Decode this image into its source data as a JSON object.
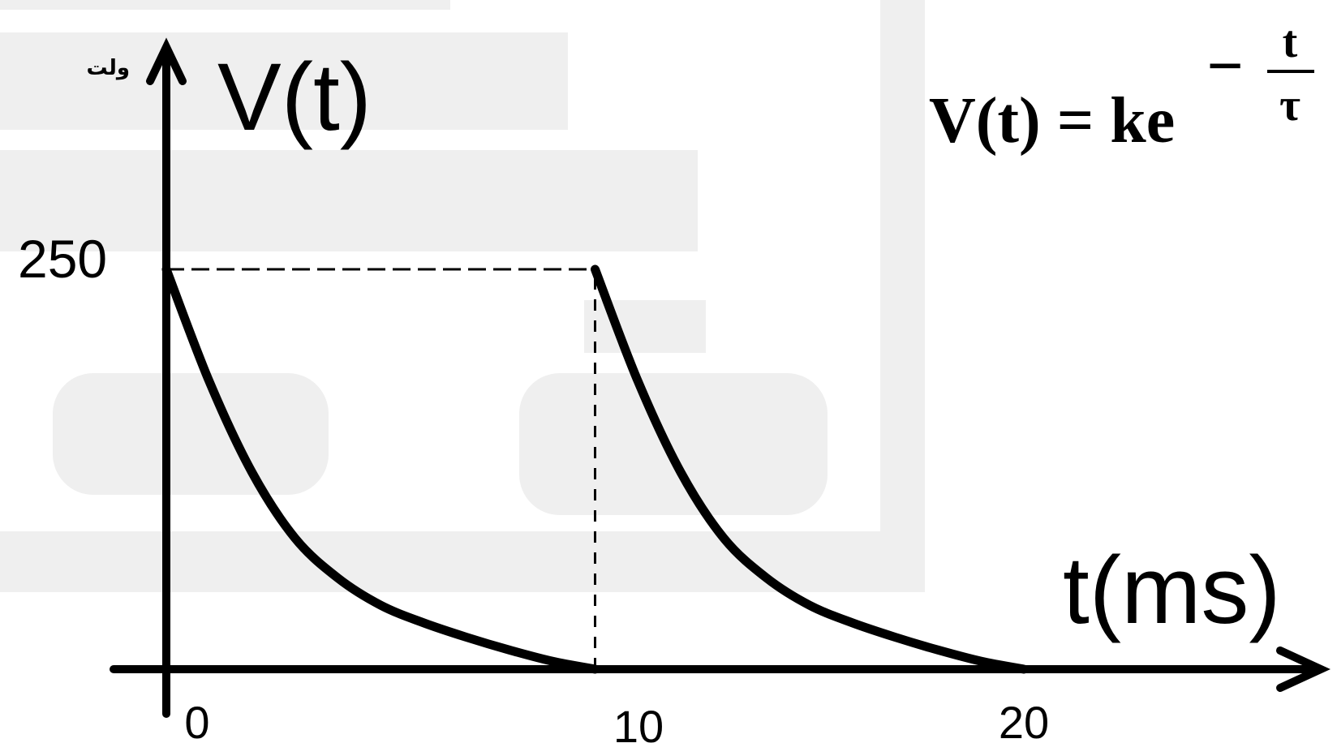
{
  "chart_data": {
    "type": "line",
    "ylabel": "V(t)",
    "ylabel_unit": "ولت",
    "xlabel": "t(ms)",
    "x_ticks": [
      "0",
      "10",
      "20"
    ],
    "y_ticks": [
      "250"
    ],
    "xlim": [
      0,
      20
    ],
    "ylim": [
      0,
      250
    ],
    "grid": false,
    "formula": {
      "lhs": "V(t) = ke",
      "exp_numerator": "t",
      "exp_denominator": "τ",
      "exp_sign": "−"
    },
    "series": [
      {
        "x": [
          0,
          1,
          2,
          3,
          4,
          5,
          6,
          7,
          8,
          9,
          10
        ],
        "y": [
          250,
          180,
          123,
          82,
          57,
          40,
          29,
          20,
          12,
          5,
          0
        ]
      },
      {
        "x": [
          10,
          11,
          12,
          13,
          14,
          15,
          16,
          17,
          18,
          19,
          20
        ],
        "y": [
          250,
          180,
          123,
          82,
          57,
          40,
          29,
          20,
          12,
          5,
          0
        ]
      }
    ],
    "guides": [
      {
        "from": [
          0,
          250
        ],
        "to": [
          10,
          250
        ],
        "style": "dashed"
      },
      {
        "from": [
          10,
          0
        ],
        "to": [
          10,
          250
        ],
        "style": "dotted"
      }
    ]
  }
}
